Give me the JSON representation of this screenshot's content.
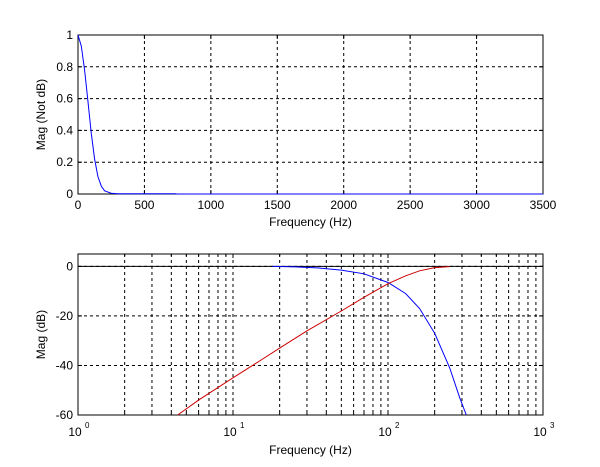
{
  "chart_data": [
    {
      "type": "line",
      "xlabel": "Frequency (Hz)",
      "ylabel": "Mag (Not dB)",
      "xlim": [
        0,
        3500
      ],
      "ylim": [
        0,
        1
      ],
      "xticks": [
        0,
        500,
        1000,
        1500,
        2000,
        2500,
        3000,
        3500
      ],
      "yticks": [
        0,
        0.2,
        0.4,
        0.6,
        0.8,
        1
      ],
      "ytick_labels": [
        "0",
        "0.2",
        "0.4",
        "0.6",
        "0.8",
        "1"
      ],
      "grid": true,
      "series": [
        {
          "color": "#0000ff",
          "x": [
            0,
            25,
            50,
            75,
            100,
            125,
            150,
            175,
            200,
            250,
            300,
            400,
            500,
            600,
            740
          ],
          "y": [
            1.0,
            0.93,
            0.78,
            0.58,
            0.38,
            0.22,
            0.11,
            0.05,
            0.02,
            0.005,
            0.002,
            0.001,
            0.001,
            0.001,
            0.001
          ]
        },
        {
          "color": "#0000ff",
          "x": [
            740,
            3500
          ],
          "y": [
            0.0,
            0.0
          ]
        }
      ]
    },
    {
      "type": "line",
      "xlabel": "Frequency (Hz)",
      "ylabel": "Mag (dB)",
      "xscale": "log",
      "xlim": [
        1,
        1000
      ],
      "ylim": [
        -60,
        5
      ],
      "xticks": [
        1,
        10,
        100,
        1000
      ],
      "xtick_base": "10",
      "xtick_exponents": [
        "0",
        "1",
        "2",
        "3"
      ],
      "yticks": [
        -60,
        -40,
        -20,
        0
      ],
      "ytick_labels": [
        "-60",
        "-40",
        "-20",
        "0"
      ],
      "grid": true,
      "series": [
        {
          "color": "#0000ff",
          "x": [
            18,
            25,
            35,
            50,
            70,
            100,
            130,
            160,
            200,
            250,
            290,
            320
          ],
          "y": [
            0,
            -0.2,
            -0.6,
            -1.5,
            -3,
            -6.5,
            -11,
            -17,
            -27,
            -41,
            -53,
            -60
          ]
        },
        {
          "color": "#cc0000",
          "x": [
            4.4,
            6,
            10,
            15,
            20,
            30,
            50,
            70,
            100,
            130,
            160,
            200,
            250
          ],
          "y": [
            -60,
            -54,
            -45,
            -38,
            -33,
            -26,
            -18,
            -12.5,
            -7,
            -3.8,
            -1.8,
            -0.5,
            -0.1
          ]
        }
      ]
    }
  ]
}
